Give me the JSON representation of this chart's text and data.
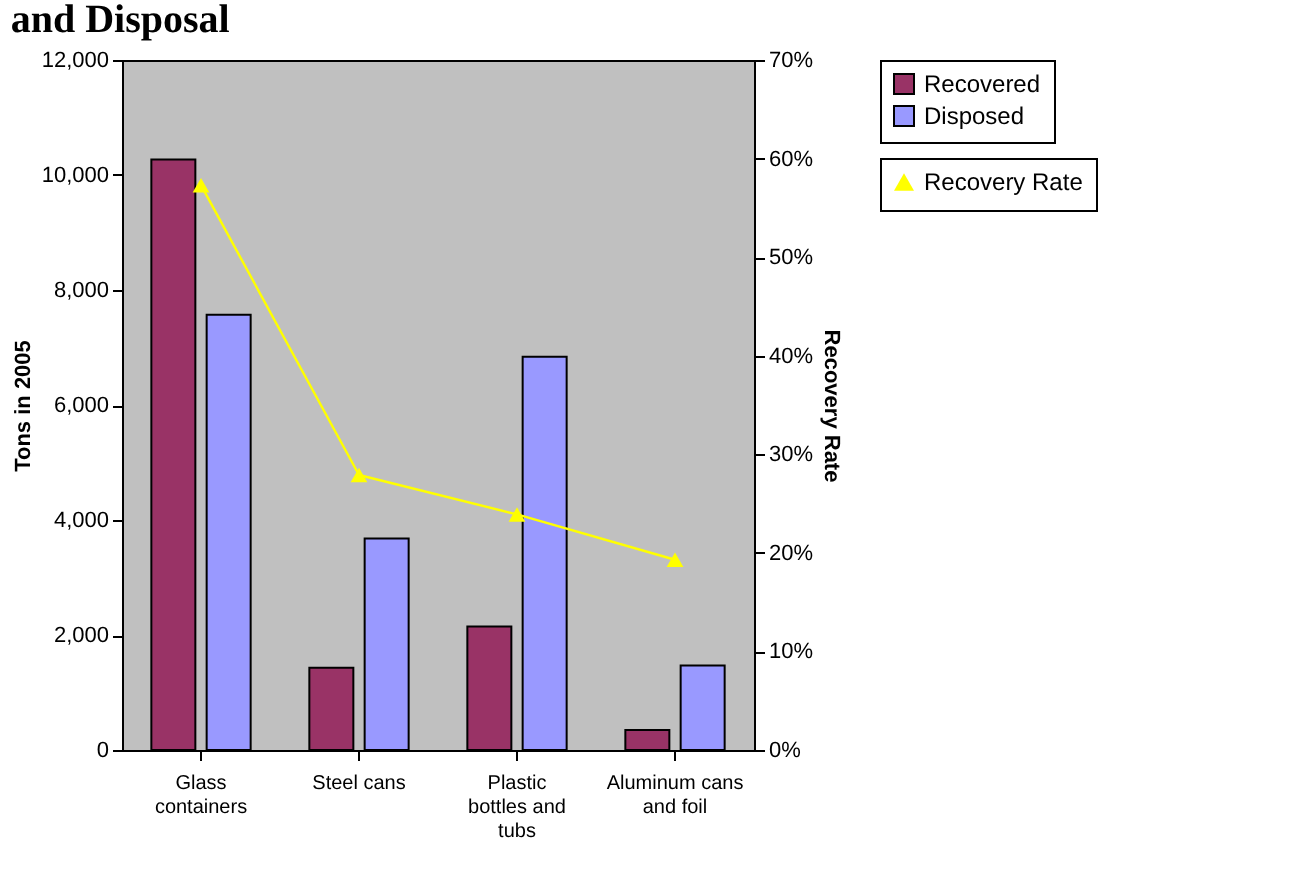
{
  "chart_data": {
    "type": "bar",
    "title": "and Disposal",
    "ylabel": "Tons in 2005",
    "y2label": "Recovery Rate",
    "categories": [
      "Glass containers",
      "Steel cans",
      "Plastic bottles and tubs",
      "Aluminum cans and foil"
    ],
    "series": [
      {
        "name": "Recovered",
        "color": "#993366",
        "values": [
          10270,
          1430,
          2150,
          350
        ]
      },
      {
        "name": "Disposed",
        "color": "#9999ff",
        "values": [
          7570,
          3680,
          6840,
          1470
        ]
      },
      {
        "name": "Recovery Rate",
        "type": "line",
        "axis": "y2",
        "color": "#ffff00",
        "marker": "triangle",
        "values": [
          57.3,
          27.9,
          23.9,
          19.3
        ]
      }
    ],
    "ylim": [
      0,
      12000
    ],
    "yticks": [
      {
        "value": 0,
        "label": "0"
      },
      {
        "value": 2000,
        "label": "2,000"
      },
      {
        "value": 4000,
        "label": "4,000"
      },
      {
        "value": 6000,
        "label": "6,000"
      },
      {
        "value": 8000,
        "label": "8,000"
      },
      {
        "value": 10000,
        "label": "10,000"
      },
      {
        "value": 12000,
        "label": "12,000"
      }
    ],
    "y2lim": [
      0,
      70
    ],
    "y2ticks": [
      {
        "value": 0,
        "label": "0%"
      },
      {
        "value": 10,
        "label": "10%"
      },
      {
        "value": 20,
        "label": "20%"
      },
      {
        "value": 30,
        "label": "30%"
      },
      {
        "value": 40,
        "label": "40%"
      },
      {
        "value": 50,
        "label": "50%"
      },
      {
        "value": 60,
        "label": "60%"
      },
      {
        "value": 70,
        "label": "70%"
      }
    ],
    "grid": false,
    "legend": "right"
  }
}
